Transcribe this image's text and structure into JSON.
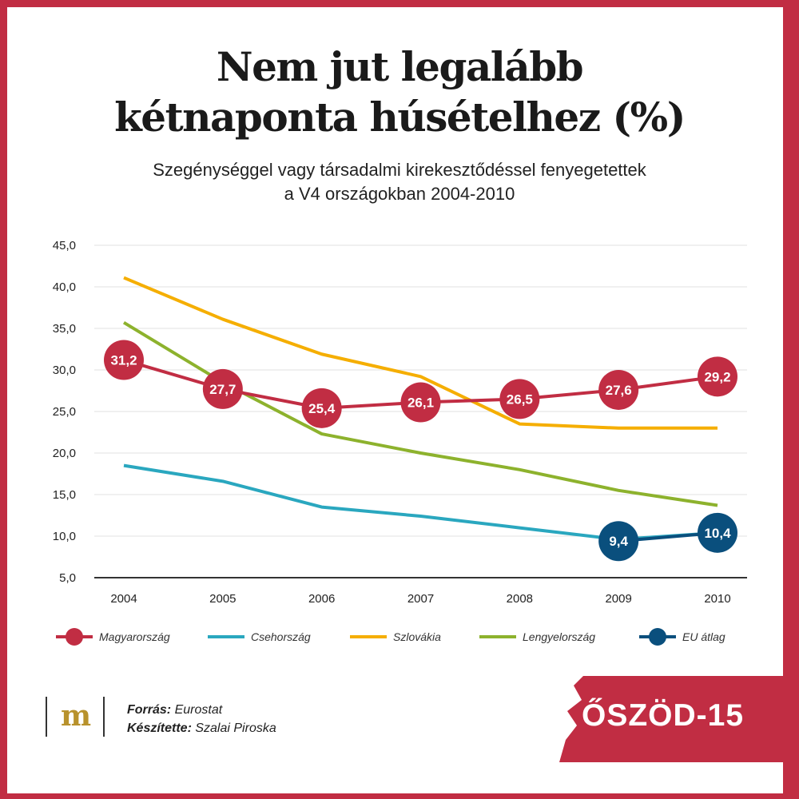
{
  "title_line1": "Nem jut legalább",
  "title_line2": "kétnaponta húsételhez (%)",
  "subtitle_line1": "Szegénységgel vagy társadalmi kirekesztődéssel fenyegetettek",
  "subtitle_line2": "a V4 országokban 2004-2010",
  "credits": {
    "source_label": "Forrás:",
    "source_value": "Eurostat",
    "author_label": "Készítette:",
    "author_value": "Szalai Piroska"
  },
  "logo_text": "m",
  "brand_text": "ŐSZÖD-15",
  "colors": {
    "frame": "#c12d43",
    "magyarorszag": "#c12d43",
    "csehorszag": "#2aa7bf",
    "szlovakia": "#f5ae00",
    "lengyelorszag": "#8db22d",
    "eu": "#0a4f7d"
  },
  "chart_data": {
    "type": "line",
    "x": [
      "2004",
      "2005",
      "2006",
      "2007",
      "2008",
      "2009",
      "2010"
    ],
    "ylim": [
      5,
      45
    ],
    "yticks": [
      "5,0",
      "10,0",
      "15,0",
      "20,0",
      "25,0",
      "30,0",
      "35,0",
      "40,0",
      "45,0"
    ],
    "grid": true,
    "legend_position": "bottom",
    "series": [
      {
        "name": "Szlovákia",
        "color": "#f5ae00",
        "values": [
          41.1,
          36.1,
          31.9,
          29.2,
          23.5,
          23.0,
          23.0
        ]
      },
      {
        "name": "Lengyelország",
        "color": "#8db22d",
        "values": [
          35.7,
          28.5,
          22.3,
          20.0,
          18.0,
          15.5,
          13.7
        ]
      },
      {
        "name": "Csehország",
        "color": "#2aa7bf",
        "values": [
          18.5,
          16.6,
          13.5,
          12.4,
          11.0,
          9.6,
          10.4
        ]
      },
      {
        "name": "EU átlag",
        "color": "#0a4f7d",
        "values": [
          null,
          null,
          null,
          null,
          null,
          9.4,
          10.4
        ],
        "labels": [
          "",
          "",
          "",
          "",
          "",
          "9,4",
          "10,4"
        ],
        "markers": true
      },
      {
        "name": "Magyarország",
        "color": "#c12d43",
        "values": [
          31.2,
          27.7,
          25.4,
          26.1,
          26.5,
          27.6,
          29.2
        ],
        "labels": [
          "31,2",
          "27,7",
          "25,4",
          "26,1",
          "26,5",
          "27,6",
          "29,2"
        ],
        "markers": true
      }
    ],
    "legend_order": [
      "Magyarország",
      "Csehország",
      "Szlovákia",
      "Lengyelország",
      "EU átlag"
    ]
  }
}
